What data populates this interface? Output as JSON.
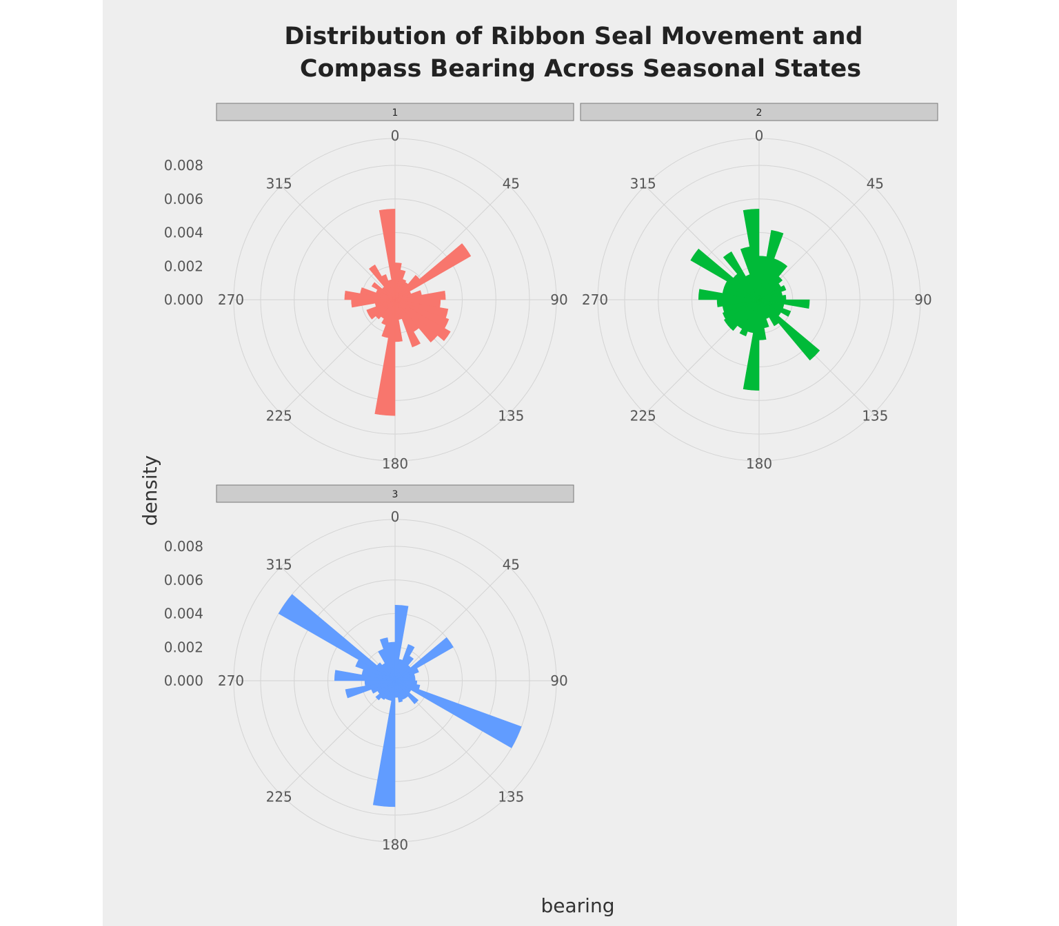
{
  "chart_data": {
    "type": "bar",
    "coord": "polar",
    "title": [
      "Distribution of Ribbon Seal Movement and",
      "Compass Bearing Across Seasonal States"
    ],
    "xlabel": "bearing",
    "ylabel": "density",
    "x_ticks": [
      "0",
      "45",
      "90",
      "135",
      "180",
      "225",
      "270",
      "315"
    ],
    "y_ticks": [
      "0.000",
      "0.002",
      "0.004",
      "0.006",
      "0.008"
    ],
    "ylim": [
      0,
      0.0096
    ],
    "bin_width_degrees": 10,
    "grid": true,
    "legend": "none",
    "facets": [
      {
        "label": "1",
        "color": "#F8766D",
        "bearings": [
          0,
          10,
          20,
          30,
          40,
          50,
          60,
          70,
          80,
          90,
          100,
          110,
          120,
          130,
          140,
          150,
          160,
          170,
          180,
          190,
          200,
          210,
          220,
          230,
          240,
          250,
          260,
          270,
          280,
          290,
          300,
          310,
          320,
          330,
          340,
          350
        ],
        "values": [
          0.0022,
          0.0018,
          0.0013,
          0.0012,
          0.0019,
          0.0052,
          0.001,
          0.0016,
          0.003,
          0.0027,
          0.0032,
          0.0034,
          0.0038,
          0.0033,
          0.0022,
          0.003,
          0.0012,
          0.0025,
          0.0069,
          0.0023,
          0.0016,
          0.0013,
          0.0015,
          0.0018,
          0.0018,
          0.0012,
          0.0026,
          0.003,
          0.0021,
          0.0012,
          0.0016,
          0.001,
          0.0024,
          0.0016,
          0.0012,
          0.0054
        ]
      },
      {
        "label": "2",
        "color": "#00BA38",
        "bearings": [
          0,
          10,
          20,
          30,
          40,
          50,
          60,
          70,
          80,
          90,
          100,
          110,
          120,
          130,
          140,
          150,
          160,
          170,
          180,
          190,
          200,
          210,
          220,
          230,
          240,
          250,
          260,
          270,
          280,
          290,
          300,
          310,
          320,
          330,
          340,
          350
        ],
        "values": [
          0.0026,
          0.0042,
          0.0026,
          0.0026,
          0.0018,
          0.0015,
          0.0017,
          0.0014,
          0.0016,
          0.003,
          0.0015,
          0.002,
          0.0015,
          0.0047,
          0.0018,
          0.0012,
          0.0017,
          0.0024,
          0.0054,
          0.002,
          0.0023,
          0.002,
          0.0024,
          0.0024,
          0.0023,
          0.0022,
          0.0025,
          0.0036,
          0.0022,
          0.0022,
          0.0047,
          0.002,
          0.0033,
          0.0016,
          0.0032,
          0.0054
        ]
      },
      {
        "label": "3",
        "color": "#619CFF",
        "bearings": [
          0,
          10,
          20,
          30,
          40,
          50,
          60,
          70,
          80,
          90,
          100,
          110,
          120,
          130,
          140,
          150,
          160,
          170,
          180,
          190,
          200,
          210,
          220,
          230,
          240,
          250,
          260,
          270,
          280,
          290,
          300,
          310,
          320,
          330,
          340,
          350
        ],
        "values": [
          0.0045,
          0.0013,
          0.0023,
          0.0017,
          0.0012,
          0.004,
          0.0015,
          0.0012,
          0.0012,
          0.0013,
          0.0015,
          0.008,
          0.0011,
          0.0018,
          0.0012,
          0.0012,
          0.0013,
          0.001,
          0.0075,
          0.0012,
          0.0012,
          0.0013,
          0.0015,
          0.0012,
          0.0015,
          0.003,
          0.0018,
          0.0036,
          0.002,
          0.0025,
          0.008,
          0.0014,
          0.0012,
          0.002,
          0.0026,
          0.0023
        ]
      }
    ]
  }
}
